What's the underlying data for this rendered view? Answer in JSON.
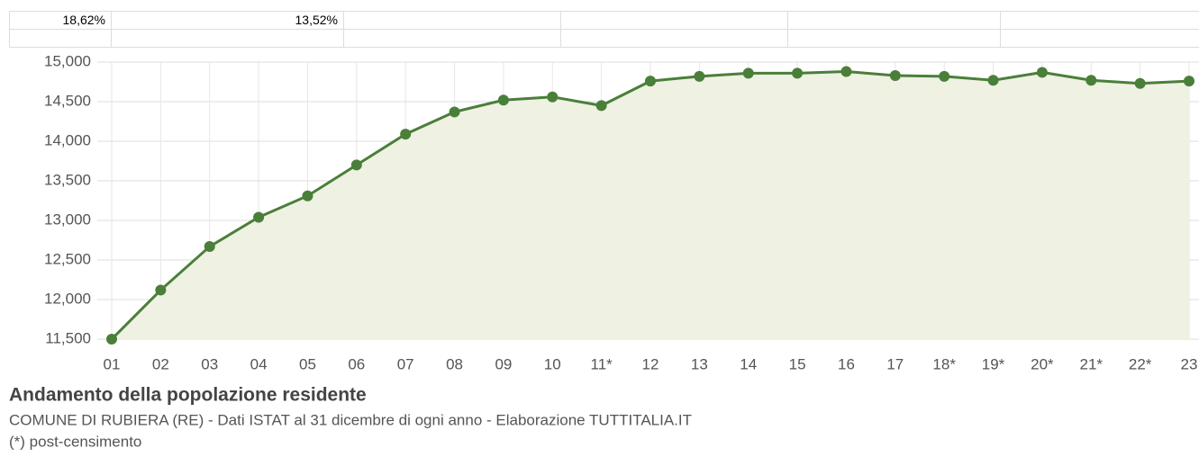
{
  "table": {
    "rows": [
      [
        "18,62%",
        "13,52%"
      ]
    ]
  },
  "chart_data": {
    "type": "area",
    "title": "Andamento della popolazione residente",
    "subtitle": "COMUNE DI RUBIERA (RE) - Dati ISTAT al 31 dicembre di ogni anno - Elaborazione TUTTITALIA.IT",
    "note": "(*) post-censimento",
    "categories": [
      "01",
      "02",
      "03",
      "04",
      "05",
      "06",
      "07",
      "08",
      "09",
      "10",
      "11*",
      "12",
      "13",
      "14",
      "15",
      "16",
      "17",
      "18*",
      "19*",
      "20*",
      "21*",
      "22*",
      "23"
    ],
    "values": [
      11500,
      12120,
      12670,
      13040,
      13310,
      13700,
      14090,
      14370,
      14520,
      14560,
      14450,
      14760,
      14820,
      14860,
      14860,
      14880,
      14830,
      14820,
      14770,
      14870,
      14770,
      14730,
      14760
    ],
    "color": "#4a7f3a",
    "fill": "#eff1e3",
    "ylim": [
      11500,
      15000
    ],
    "yticks": [
      {
        "value": 11500,
        "label": "11,500"
      },
      {
        "value": 12000,
        "label": "12,000"
      },
      {
        "value": 12500,
        "label": "12,500"
      },
      {
        "value": 13000,
        "label": "13,000"
      },
      {
        "value": 13500,
        "label": "13,500"
      },
      {
        "value": 14000,
        "label": "14,000"
      },
      {
        "value": 14500,
        "label": "14,500"
      },
      {
        "value": 15000,
        "label": "15,000"
      }
    ],
    "grid": true
  }
}
